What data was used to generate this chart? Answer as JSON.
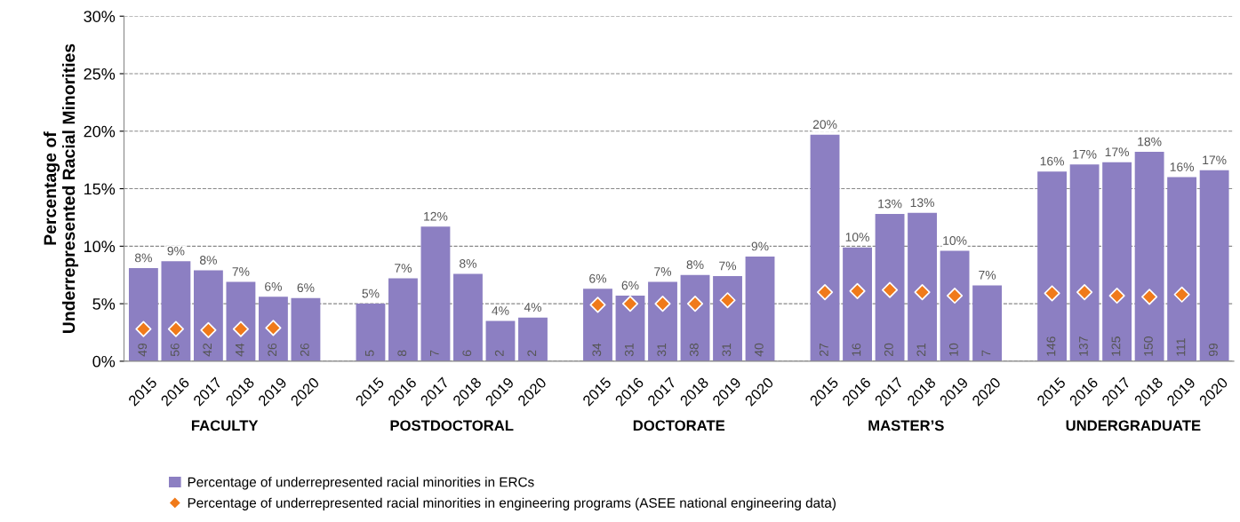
{
  "chart_data": {
    "type": "bar",
    "ylabel": "Percentage of\nUnderrepresented Racial Minorities",
    "categories": [
      "2015",
      "2016",
      "2017",
      "2018",
      "2019",
      "2020",
      null,
      "2015",
      "2016",
      "2017",
      "2018",
      "2019",
      "2020",
      null,
      "2015",
      "2016",
      "2017",
      "2018",
      "2019",
      "2020",
      null,
      "2015",
      "2016",
      "2017",
      "2018",
      "2019",
      "2020",
      null,
      "2015",
      "2016",
      "2017",
      "2018",
      "2019",
      "2020"
    ],
    "series": [
      {
        "name": "Percentage of underrepresented racial minorities in ERCs",
        "color": "#8c7fc2",
        "values": [
          8.1,
          8.7,
          7.9,
          6.9,
          5.6,
          5.5,
          null,
          5.0,
          7.2,
          11.7,
          7.6,
          3.5,
          3.8,
          null,
          6.3,
          5.7,
          6.9,
          7.5,
          7.4,
          9.1,
          null,
          19.7,
          9.9,
          12.8,
          12.9,
          9.6,
          6.6,
          null,
          16.5,
          17.1,
          17.3,
          18.2,
          16.0,
          16.6
        ],
        "value_labels": [
          "8%",
          "9%",
          "8%",
          "7%",
          "6%",
          "6%",
          null,
          "5%",
          "7%",
          "12%",
          "8%",
          "4%",
          "4%",
          null,
          "6%",
          "6%",
          "7%",
          "8%",
          "7%",
          "9%",
          null,
          "20%",
          "10%",
          "13%",
          "13%",
          "10%",
          "7%",
          null,
          "16%",
          "17%",
          "17%",
          "18%",
          "16%",
          "17%"
        ]
      },
      {
        "name": "Percentage of underrepresented racial minorities in engineering programs (ASEE national engineering data)",
        "type": "scatter",
        "color": "#f07a1a",
        "marker": "diamond",
        "values": [
          2.8,
          2.8,
          2.7,
          2.8,
          2.9,
          null,
          null,
          null,
          null,
          null,
          null,
          null,
          null,
          null,
          4.9,
          5.0,
          5.0,
          5.0,
          5.3,
          null,
          null,
          6.0,
          6.1,
          6.2,
          6.0,
          5.7,
          null,
          null,
          5.9,
          6.0,
          5.7,
          5.6,
          5.8,
          null
        ]
      }
    ],
    "ylim": [
      0,
      30
    ],
    "yticks": [
      {
        "value": 0,
        "label": "0%"
      },
      {
        "value": 5,
        "label": "5%"
      },
      {
        "value": 10,
        "label": "10%"
      },
      {
        "value": 15,
        "label": "15%"
      },
      {
        "value": 20,
        "label": "20%"
      },
      {
        "value": 25,
        "label": "25%"
      },
      {
        "value": 30,
        "label": "30%"
      }
    ],
    "grid": "y",
    "legend": "bottom left",
    "annotations": [
      "FACULTY",
      "POSTDOCTORAL",
      "DOCTORATE",
      "MASTER’S",
      "UNDERGRADUATE",
      "49",
      "56",
      "42",
      "44",
      "26",
      "26",
      "5",
      "8",
      "7",
      "6",
      "2",
      "2",
      "34",
      "31",
      "31",
      "38",
      "31",
      "40",
      "27",
      "16",
      "20",
      "21",
      "10",
      "7",
      "146",
      "137",
      "125",
      "150",
      "111",
      "99"
    ]
  }
}
